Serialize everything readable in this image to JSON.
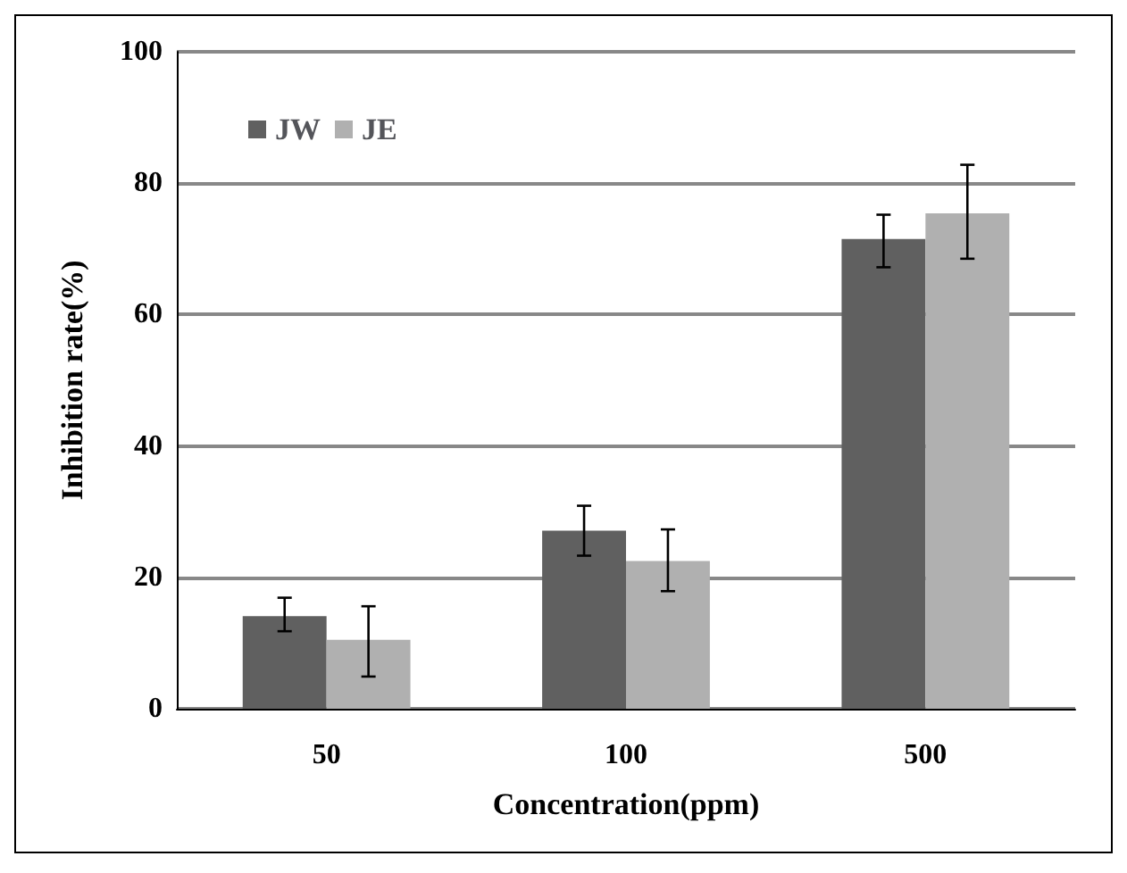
{
  "chart_data": {
    "type": "bar",
    "xlabel": "Concentration(ppm)",
    "ylabel": "Inhibition rate(%)",
    "categories": [
      "50",
      "100",
      "500"
    ],
    "series": [
      {
        "name": "JW",
        "color": "#606060",
        "values": [
          14.1,
          27.1,
          71.5
        ],
        "errors": [
          [
            11.8,
            16.9
          ],
          [
            23.3,
            30.9
          ],
          [
            67.2,
            75.2
          ]
        ]
      },
      {
        "name": "JE",
        "color": "#b0b0b0",
        "values": [
          10.5,
          22.5,
          75.4
        ],
        "errors": [
          [
            4.9,
            15.6
          ],
          [
            17.9,
            27.3
          ],
          [
            68.5,
            82.8
          ]
        ]
      }
    ],
    "ylim": [
      0,
      100
    ],
    "yticks": [
      0,
      20,
      40,
      60,
      80,
      100
    ],
    "grid": "y",
    "legend": "top left"
  }
}
